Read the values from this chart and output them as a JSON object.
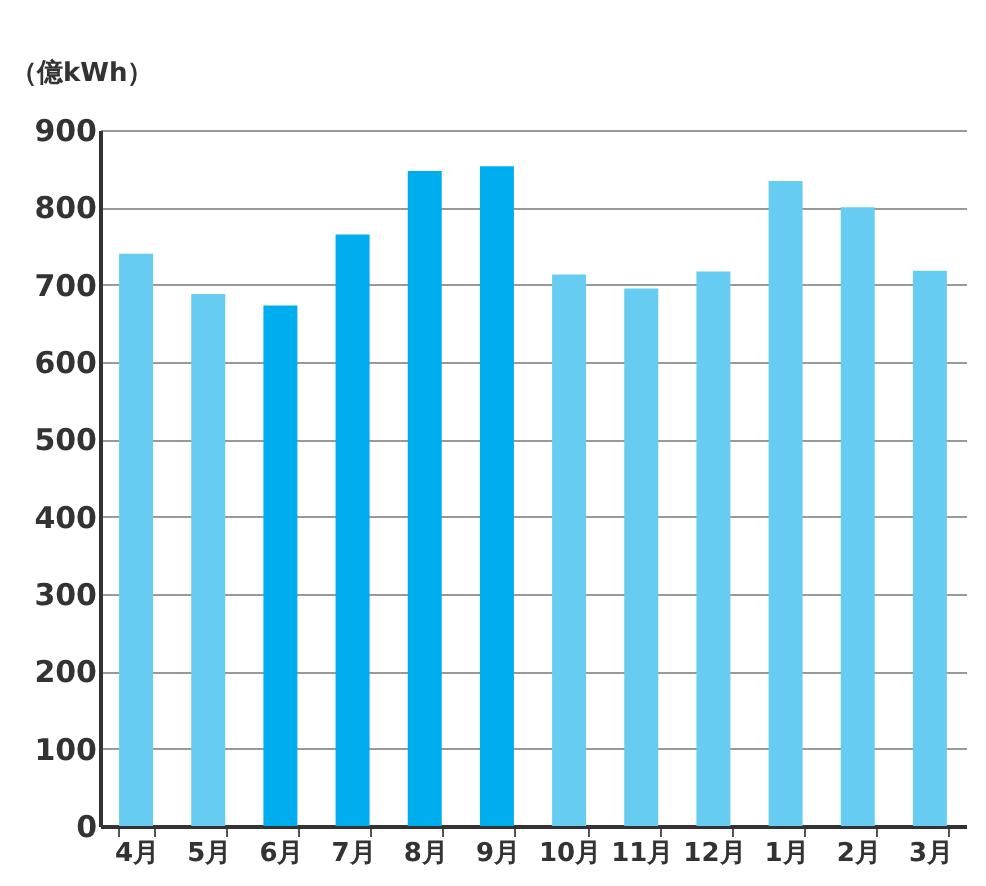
{
  "chart_data": {
    "type": "bar",
    "ylabel": "（億kWh）",
    "categories": [
      "4月",
      "5月",
      "6月",
      "7月",
      "8月",
      "9月",
      "10月",
      "11月",
      "12月",
      "1月",
      "2月",
      "3月"
    ],
    "values": [
      740,
      688,
      673,
      765,
      847,
      853,
      713,
      695,
      717,
      834,
      800,
      718
    ],
    "colors": [
      "#66ccf2",
      "#66ccf2",
      "#00aeef",
      "#00aeef",
      "#00aeef",
      "#00aeef",
      "#66ccf2",
      "#66ccf2",
      "#66ccf2",
      "#66ccf2",
      "#66ccf2",
      "#66ccf2"
    ],
    "ylim": [
      0,
      900
    ],
    "yticks": [
      0,
      100,
      200,
      300,
      400,
      500,
      600,
      700,
      800,
      900
    ],
    "grid": "y"
  }
}
